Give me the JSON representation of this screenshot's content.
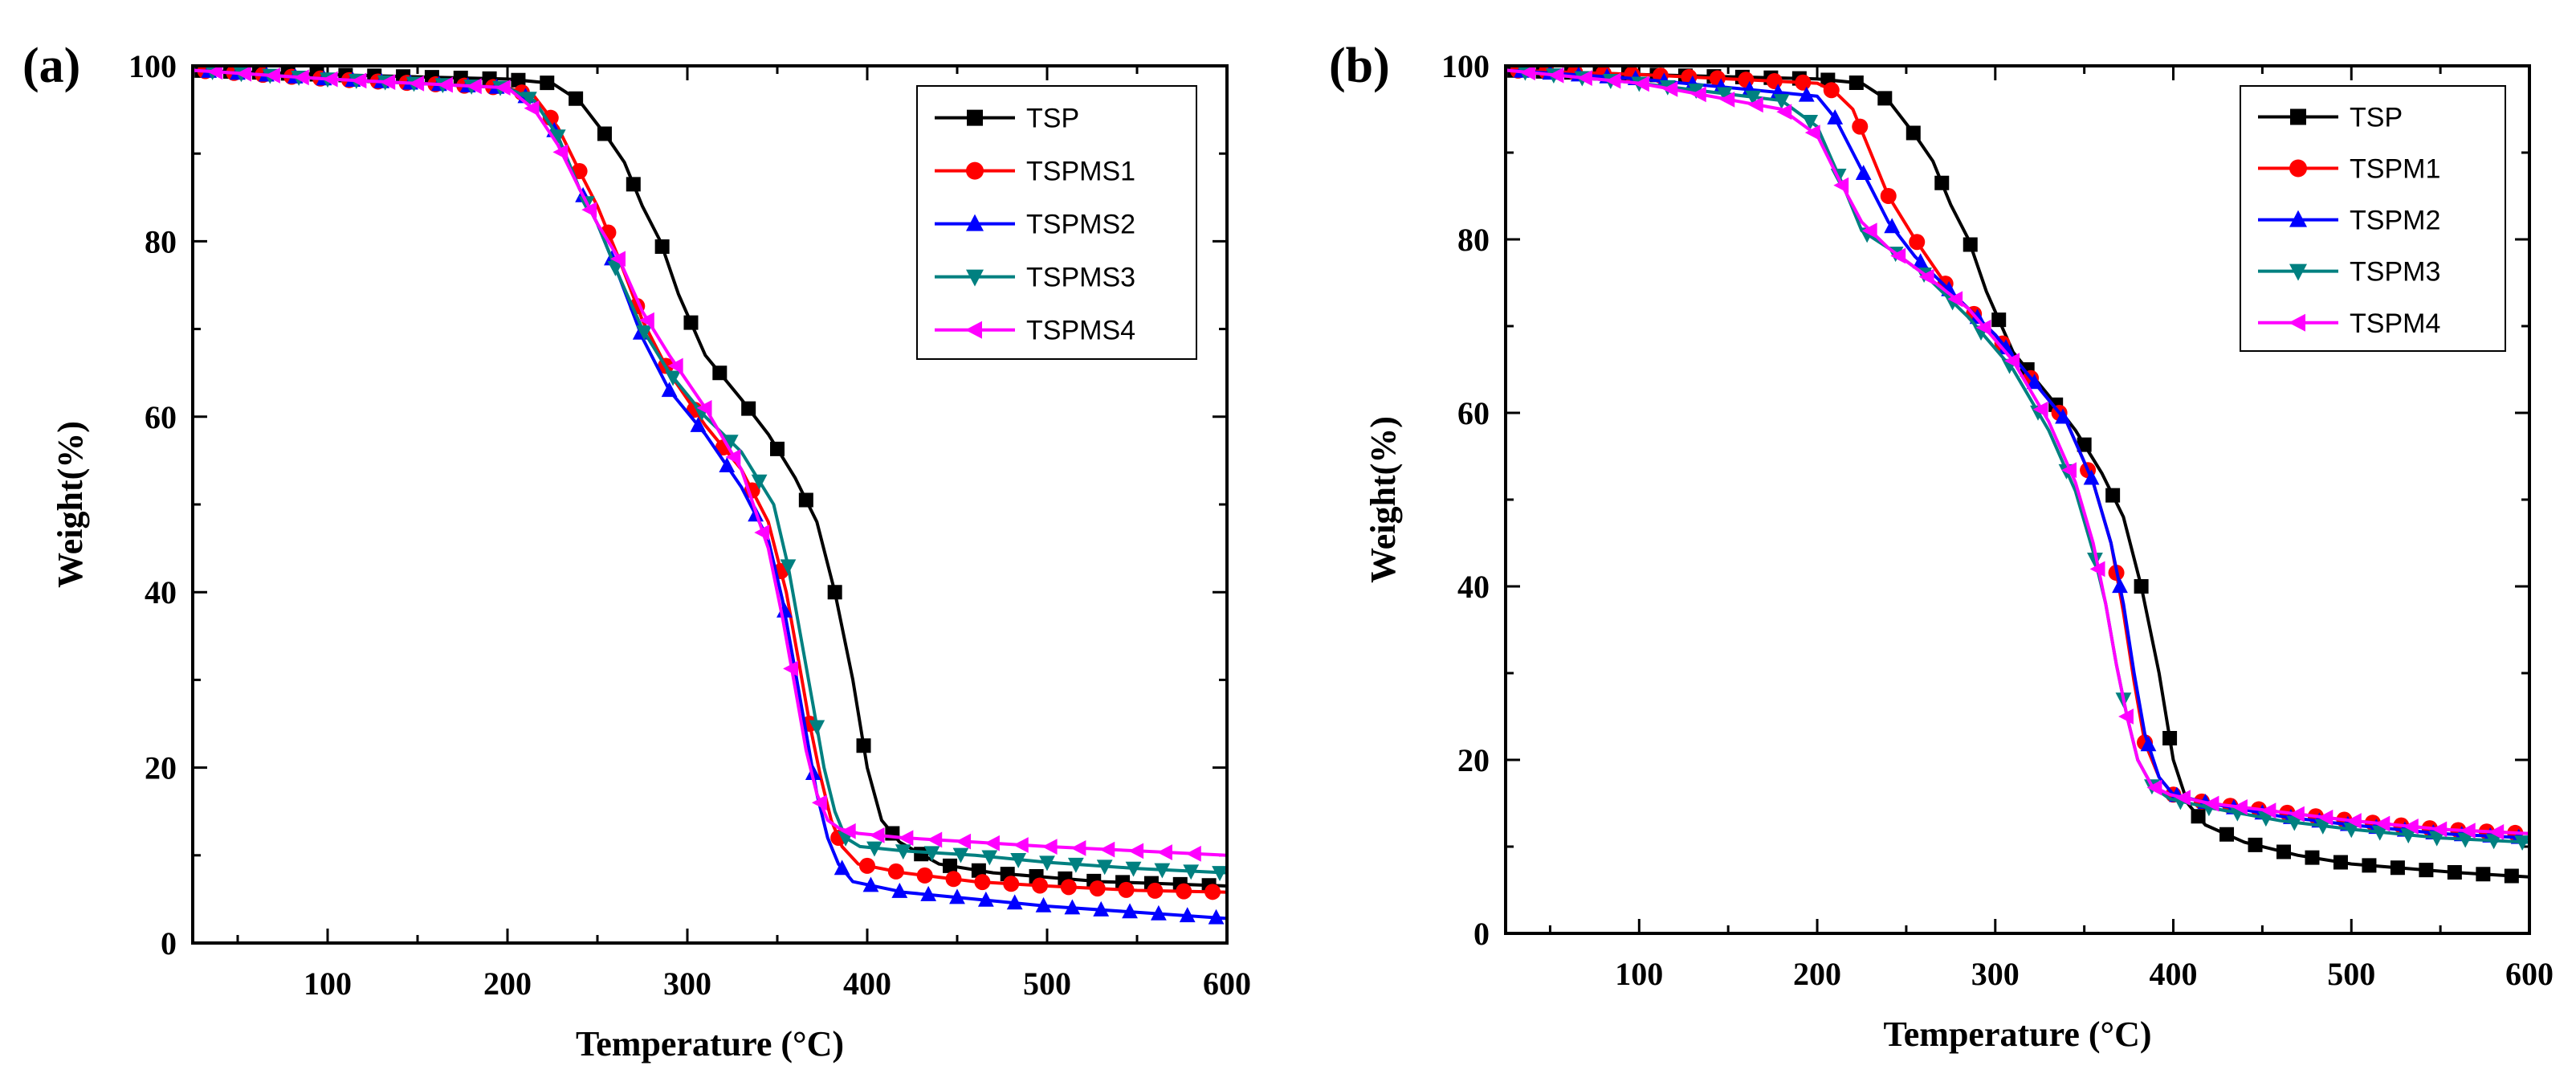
{
  "chart_data": [
    {
      "type": "line",
      "panel_label": "(a)",
      "title": "",
      "xlabel": "Temperature (°C)",
      "ylabel": "Weight(%)",
      "xlim": [
        25,
        600
      ],
      "ylim": [
        0,
        100
      ],
      "xticks": [
        100,
        200,
        300,
        400,
        500,
        600
      ],
      "yticks": [
        0,
        20,
        40,
        60,
        80,
        100
      ],
      "legend_position": "top-right",
      "grid": false,
      "series": [
        {
          "name": "TSP",
          "color": "#000000",
          "marker": "square",
          "x": [
            25,
            100,
            200,
            225,
            240,
            255,
            265,
            275,
            285,
            295,
            310,
            330,
            345,
            360,
            372,
            382,
            392,
            400,
            408,
            418,
            440,
            470,
            500,
            530,
            560,
            600
          ],
          "y": [
            99.5,
            99,
            98.5,
            98,
            96,
            92,
            89,
            84,
            80,
            74,
            67,
            62,
            58,
            53,
            48,
            40,
            30,
            20,
            14,
            11.5,
            9,
            8,
            7.5,
            7,
            6.8,
            6.5
          ]
        },
        {
          "name": "TSPMS1",
          "color": "#ff0000",
          "marker": "circle",
          "x": [
            25,
            100,
            200,
            215,
            228,
            240,
            250,
            262,
            275,
            290,
            310,
            330,
            345,
            355,
            362,
            368,
            374,
            380,
            386,
            395,
            420,
            460,
            500,
            550,
            600
          ],
          "y": [
            99.5,
            98.5,
            97.5,
            96.5,
            93,
            88,
            84,
            78,
            71,
            65,
            59,
            54,
            48,
            40,
            32,
            25,
            19,
            14,
            11,
            9,
            8,
            7,
            6.5,
            6,
            5.8
          ]
        },
        {
          "name": "TSPMS2",
          "color": "#0000ff",
          "marker": "triangle-up",
          "x": [
            25,
            100,
            200,
            215,
            228,
            240,
            250,
            262,
            275,
            290,
            310,
            330,
            345,
            353,
            360,
            366,
            372,
            378,
            384,
            392,
            420,
            460,
            500,
            550,
            600
          ],
          "y": [
            99.5,
            98.5,
            97.5,
            96,
            92,
            86,
            82,
            76,
            69,
            63,
            58,
            52,
            46,
            39,
            31,
            24,
            17,
            12,
            9,
            7,
            5.8,
            5,
            4.2,
            3.5,
            2.8
          ]
        },
        {
          "name": "TSPMS3",
          "color": "#008080",
          "marker": "triangle-down",
          "x": [
            25,
            100,
            200,
            215,
            228,
            240,
            250,
            262,
            275,
            290,
            310,
            330,
            348,
            356,
            363,
            370,
            376,
            382,
            388,
            396,
            420,
            460,
            500,
            550,
            600
          ],
          "y": [
            99.5,
            98.5,
            97.5,
            96,
            92,
            86,
            82,
            76,
            70,
            65,
            60,
            56,
            50,
            43,
            35,
            27,
            20,
            15,
            12,
            11,
            10.5,
            10,
            9.2,
            8.5,
            8
          ]
        },
        {
          "name": "TSPMS4",
          "color": "#ff00ff",
          "marker": "triangle-left",
          "x": [
            25,
            100,
            200,
            215,
            228,
            240,
            250,
            262,
            275,
            290,
            310,
            330,
            345,
            353,
            360,
            366,
            372,
            378,
            385,
            395,
            420,
            460,
            500,
            550,
            600
          ],
          "y": [
            99.5,
            98.5,
            97.5,
            95,
            91,
            86,
            82,
            78,
            72,
            67,
            61,
            54,
            45,
            37,
            29,
            22,
            17,
            14,
            13,
            12.5,
            12,
            11.5,
            11,
            10.5,
            10
          ]
        }
      ]
    },
    {
      "type": "line",
      "panel_label": "(b)",
      "title": "",
      "xlabel": "Temperature (°C)",
      "ylabel": "Weight(%)",
      "xlim": [
        25,
        600
      ],
      "ylim": [
        0,
        100
      ],
      "xticks": [
        100,
        200,
        300,
        400,
        500,
        600
      ],
      "yticks": [
        0,
        20,
        40,
        60,
        80,
        100
      ],
      "legend_position": "top-right",
      "grid": false,
      "series": [
        {
          "name": "TSP",
          "color": "#000000",
          "marker": "square",
          "x": [
            25,
            100,
            200,
            225,
            240,
            255,
            265,
            275,
            285,
            295,
            310,
            330,
            345,
            360,
            372,
            382,
            392,
            400,
            408,
            418,
            440,
            470,
            500,
            530,
            560,
            600
          ],
          "y": [
            99.5,
            99,
            98.5,
            98,
            96,
            92,
            89,
            84,
            80,
            74,
            67,
            62,
            58,
            53,
            48,
            40,
            30,
            20,
            15,
            12.5,
            10.5,
            9,
            8,
            7.5,
            7,
            6.5
          ]
        },
        {
          "name": "TSPM1",
          "color": "#ff0000",
          "marker": "circle",
          "x": [
            25,
            100,
            200,
            210,
            220,
            230,
            240,
            255,
            275,
            300,
            320,
            340,
            355,
            365,
            372,
            378,
            384,
            392,
            400,
            420,
            460,
            500,
            550,
            600
          ],
          "y": [
            99.5,
            99,
            98,
            97,
            95,
            90,
            85,
            80,
            74,
            69,
            64,
            59,
            52,
            45,
            37,
            29,
            22,
            18,
            16,
            15,
            14,
            13,
            12,
            11.5
          ]
        },
        {
          "name": "TSPM2",
          "color": "#0000ff",
          "marker": "triangle-up",
          "x": [
            25,
            100,
            200,
            210,
            220,
            230,
            240,
            255,
            275,
            300,
            320,
            340,
            355,
            365,
            372,
            378,
            384,
            392,
            400,
            420,
            460,
            500,
            550,
            600
          ],
          "y": [
            99.5,
            98.5,
            96.5,
            94,
            90,
            86,
            82,
            78,
            74,
            69,
            64,
            59,
            52,
            45,
            38,
            30,
            23,
            18,
            16,
            15,
            13.5,
            12.5,
            11.5,
            11
          ]
        },
        {
          "name": "TSPM3",
          "color": "#008080",
          "marker": "triangle-down",
          "x": [
            25,
            100,
            180,
            200,
            215,
            225,
            240,
            260,
            285,
            310,
            330,
            345,
            355,
            362,
            368,
            374,
            380,
            388,
            398,
            420,
            460,
            500,
            550,
            600
          ],
          "y": [
            99.5,
            98,
            96,
            93,
            86,
            81,
            79,
            76,
            71,
            65,
            58,
            51,
            44,
            38,
            31,
            25,
            20,
            17,
            15.5,
            14.5,
            13,
            12,
            11,
            10.5
          ]
        },
        {
          "name": "TSPM4",
          "color": "#ff00ff",
          "marker": "triangle-left",
          "x": [
            25,
            100,
            180,
            200,
            212,
            225,
            240,
            260,
            285,
            310,
            330,
            345,
            355,
            362,
            368,
            374,
            380,
            388,
            398,
            420,
            460,
            500,
            550,
            600
          ],
          "y": [
            99.5,
            98,
            95,
            92,
            87,
            82,
            79,
            76,
            72,
            66,
            59,
            52,
            45,
            38,
            31,
            25,
            20,
            17,
            16,
            15,
            14,
            13,
            12,
            11.5
          ]
        }
      ]
    }
  ]
}
